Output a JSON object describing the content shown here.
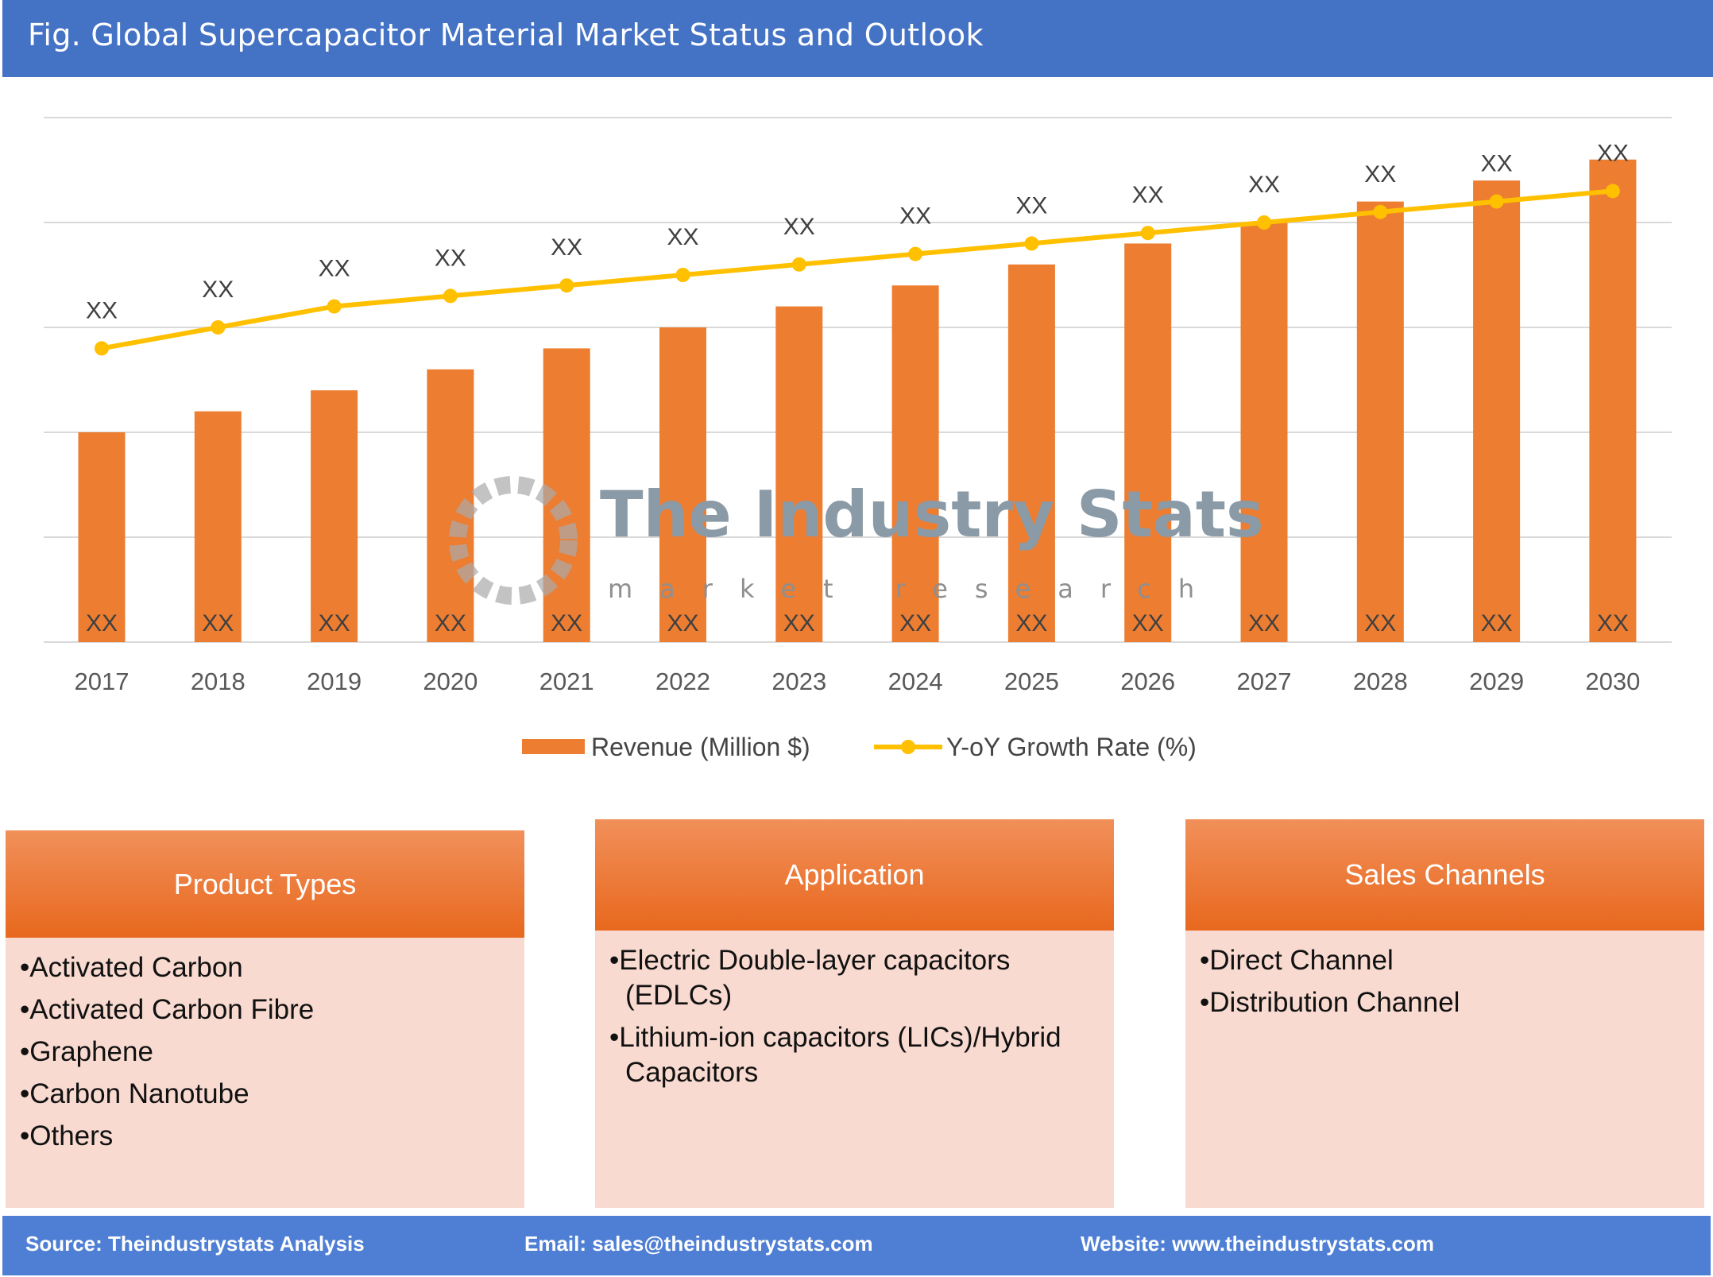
{
  "header": {
    "title": "Fig. Global Supercapacitor Material Market Status and Outlook"
  },
  "chart_data": {
    "type": "bar+line",
    "categories": [
      "2017",
      "2018",
      "2019",
      "2020",
      "2021",
      "2022",
      "2023",
      "2024",
      "2025",
      "2026",
      "2027",
      "2028",
      "2029",
      "2030"
    ],
    "series": [
      {
        "name": "Revenue (Million $)",
        "type": "bar",
        "color": "#ED7D31",
        "values": [
          2.0,
          2.2,
          2.4,
          2.6,
          2.8,
          3.0,
          3.2,
          3.4,
          3.6,
          3.8,
          4.0,
          4.2,
          4.4,
          4.6
        ],
        "data_label": "XX"
      },
      {
        "name": "Y-oY Growth Rate (%)",
        "type": "line",
        "color": "#FFC000",
        "values": [
          2.8,
          3.0,
          3.2,
          3.3,
          3.4,
          3.5,
          3.6,
          3.7,
          3.8,
          3.9,
          4.0,
          4.1,
          4.2,
          4.3
        ],
        "data_label": "XX"
      }
    ],
    "ylim": [
      0,
      5
    ],
    "grid": true,
    "legend": "bottom",
    "title": "",
    "xlabel": "",
    "ylabel": ""
  },
  "watermark": {
    "name": "The Industry Stats",
    "tagline": "market research"
  },
  "boxes": [
    {
      "title": "Product Types",
      "items": [
        "Activated Carbon",
        "Activated Carbon Fibre",
        "Graphene",
        "Carbon Nanotube",
        "Others"
      ]
    },
    {
      "title": "Application",
      "items": [
        "Electric Double-layer capacitors (EDLCs)",
        "Lithium-ion capacitors (LICs)/Hybrid Capacitors"
      ]
    },
    {
      "title": "Sales Channels",
      "items": [
        "Direct Channel",
        "Distribution Channel"
      ]
    }
  ],
  "footer": {
    "source": "Source: Theindustrystats Analysis",
    "email": "Email: sales@theindustrystats.com",
    "website": "Website: www.theindustrystats.com"
  }
}
